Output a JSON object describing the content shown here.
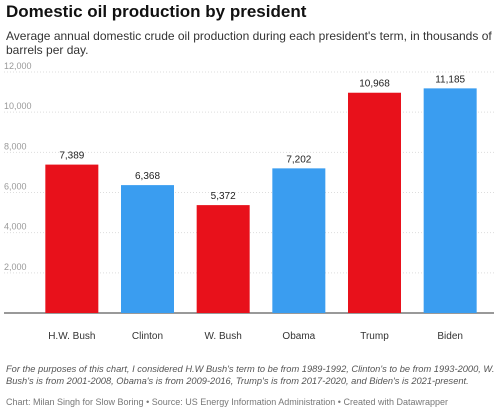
{
  "chart_data": {
    "type": "bar",
    "title": "Domestic oil production by president",
    "subtitle": "Average annual domestic crude oil production during each president's term, in thousands of barrels per day.",
    "categories": [
      "H.W. Bush",
      "Clinton",
      "W. Bush",
      "Obama",
      "Trump",
      "Biden"
    ],
    "values": [
      7389,
      6368,
      5372,
      7202,
      10968,
      11185
    ],
    "value_labels": [
      "7,389",
      "6,368",
      "5,372",
      "7,202",
      "10,968",
      "11,185"
    ],
    "bar_colors": [
      "#e8111b",
      "#3a9df0",
      "#e8111b",
      "#3a9df0",
      "#e8111b",
      "#3a9df0"
    ],
    "yticks": [
      2000,
      4000,
      6000,
      8000,
      10000,
      12000
    ],
    "ytick_labels": [
      "2,000",
      "4,000",
      "6,000",
      "8,000",
      "10,000",
      "12,000"
    ],
    "ylim": [
      0,
      12000
    ],
    "grid": true,
    "xlabel": "",
    "ylabel": ""
  },
  "note": "For the purposes of this chart, I considered H.W Bush's term to be from 1989-1992, Clinton's to be from 1993-2000, W. Bush's is from 2001-2008, Obama's is from 2009-2016, Trump's is from 2017-2020, and Biden's is 2021-present.",
  "source": "Chart: Milan Singh for Slow Boring • Source: US Energy Information Administration • Created with Datawrapper",
  "colors": {
    "republican": "#e8111b",
    "democrat": "#3a9df0",
    "grid": "#dddddd"
  }
}
